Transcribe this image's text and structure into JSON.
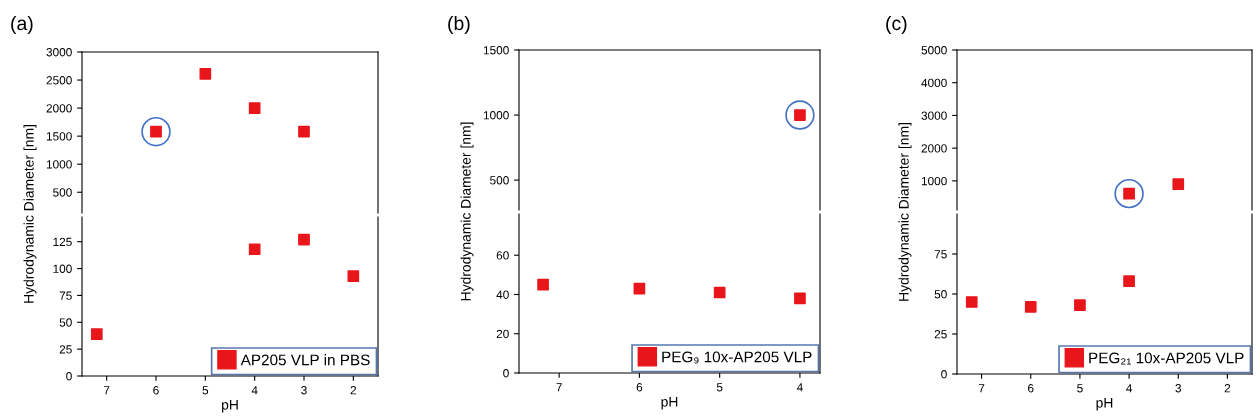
{
  "chart_data": [
    {
      "type": "scatter",
      "title": "(a)",
      "x": [
        6,
        5,
        4,
        3
      ],
      "xlim": [
        7.5,
        1.5
      ],
      "xticks": [
        7,
        6,
        5,
        4,
        3,
        2
      ],
      "ylim": [
        130,
        3000
      ],
      "yticks": [
        500,
        1000,
        1500,
        2000,
        2500,
        3000
      ],
      "tick_labels": "y",
      "marker": "square",
      "series": [
        {
          "color": "#e8161b",
          "values": [
            1580,
            2610,
            2000,
            1580
          ]
        },
        {
          "color": "#4472c4",
          "values": [
            1580,
            null,
            null,
            null
          ],
          "marker": "circle"
        }
      ]
    },
    {
      "type": "scatter",
      "xlabel": "pH",
      "ylabel": "Hydrodynamic Diameter [nm]",
      "x": [
        7.2,
        4,
        3,
        2
      ],
      "xlim": [
        7.5,
        1.5
      ],
      "xticks": [
        7,
        6,
        5,
        4,
        3,
        2
      ],
      "ylim": [
        0,
        148
      ],
      "yticks": [
        0,
        25,
        50,
        75,
        100,
        125
      ],
      "marker": "square",
      "legend": "bottom right",
      "series": [
        {
          "name": "AP205 VLP in PBS",
          "color": "#e8161b",
          "values": [
            39,
            118,
            127,
            93
          ]
        }
      ]
    },
    {
      "type": "scatter",
      "title": "(b)",
      "x": [
        4
      ],
      "xlim": [
        7.5,
        3.75
      ],
      "xticks": [
        7,
        6,
        5,
        4
      ],
      "ylim": [
        270,
        1500
      ],
      "yticks": [
        500,
        1000,
        1500
      ],
      "tick_labels": "y",
      "marker": "square",
      "series": [
        {
          "color": "#e8161b",
          "values": [
            1000
          ]
        },
        {
          "color": "#4472c4",
          "values": [
            1000
          ],
          "marker": "circle"
        }
      ]
    },
    {
      "type": "scatter",
      "xlabel": "pH",
      "ylabel": "Hydrodynamic Diameter [nm]",
      "x": [
        7.2,
        6,
        5,
        4
      ],
      "xlim": [
        7.5,
        3.75
      ],
      "xticks": [
        7,
        6,
        5,
        4
      ],
      "ylim": [
        0,
        81
      ],
      "yticks": [
        0,
        20,
        40,
        60
      ],
      "marker": "square",
      "legend": "bottom right",
      "series": [
        {
          "name": "PEG₉ 10x-AP205 VLP",
          "color": "#e8161b",
          "values": [
            45,
            43,
            41,
            38
          ]
        }
      ]
    },
    {
      "type": "scatter",
      "title": "(c)",
      "x": [
        4,
        3
      ],
      "xlim": [
        7.5,
        1.5
      ],
      "xticks": [
        7,
        6,
        5,
        4,
        3,
        2
      ],
      "ylim": [
        110,
        5000
      ],
      "yticks": [
        1000,
        2000,
        3000,
        4000,
        5000
      ],
      "tick_labels": "y",
      "marker": "square",
      "series": [
        {
          "color": "#e8161b",
          "values": [
            610,
            900
          ]
        },
        {
          "color": "#4472c4",
          "values": [
            610,
            null
          ],
          "marker": "circle"
        }
      ]
    },
    {
      "type": "scatter",
      "xlabel": "pH",
      "ylabel": "Hydrodynamic Diameter [nm]",
      "x": [
        7.2,
        6,
        5,
        4
      ],
      "xlim": [
        7.5,
        1.5
      ],
      "xticks": [
        7,
        6,
        5,
        4,
        3,
        2
      ],
      "ylim": [
        0,
        100
      ],
      "yticks": [
        0,
        25,
        50,
        75
      ],
      "marker": "square",
      "legend": "bottom right",
      "series": [
        {
          "name": "PEG₂₁ 10x-AP205 VLP",
          "color": "#e8161b",
          "values": [
            45,
            42,
            43,
            58
          ]
        }
      ]
    }
  ]
}
